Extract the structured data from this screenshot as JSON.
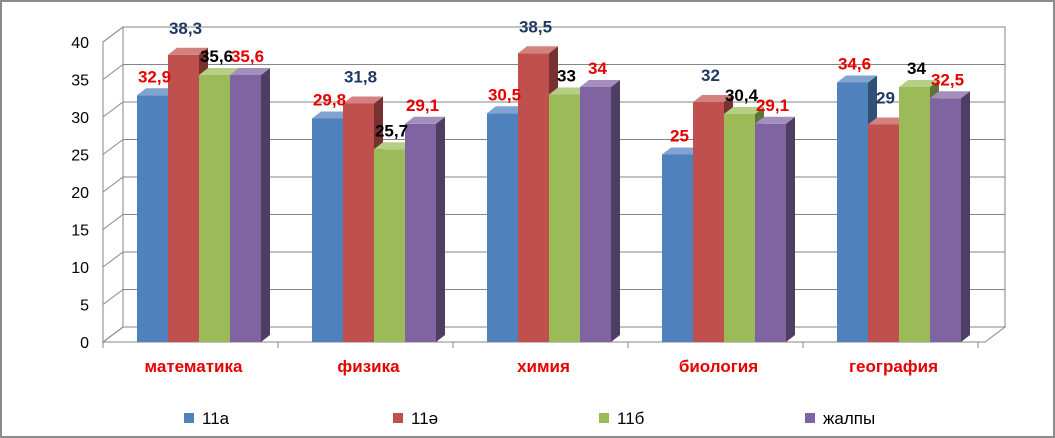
{
  "chart_data": {
    "type": "bar",
    "style": "3d-clustered-column",
    "categories": [
      "математика",
      "физика",
      "химия",
      "биология",
      "география"
    ],
    "category_label_color": "#e60000",
    "series": [
      {
        "name": "11а",
        "color": "#4f81bd",
        "values": [
          32.9,
          29.8,
          30.5,
          25,
          34.6
        ],
        "labels": [
          "32,9",
          "29,8",
          "30,5",
          "25",
          "34,6"
        ],
        "label_color": "#e60000"
      },
      {
        "name": "11ә",
        "color": "#c0504d",
        "values": [
          38.3,
          31.8,
          38.5,
          32,
          29
        ],
        "labels": [
          "38,3",
          "31,8",
          "38,5",
          "32",
          "29"
        ],
        "label_color": "#1f3864"
      },
      {
        "name": "11б",
        "color": "#9bbb59",
        "values": [
          35.6,
          25.7,
          33,
          30.4,
          34
        ],
        "labels": [
          "35,6",
          "25,7",
          "33",
          "30,4",
          "34"
        ],
        "label_color": "#000000"
      },
      {
        "name": "жалпы",
        "color": "#8064a2",
        "values": [
          35.6,
          29.1,
          34,
          29.1,
          32.5
        ],
        "labels": [
          "35,6",
          "29,1",
          "34",
          "29,1",
          "32,5"
        ],
        "label_color": "#e60000"
      }
    ],
    "y_ticks": [
      "0",
      "5",
      "10",
      "15",
      "20",
      "25",
      "30",
      "35",
      "40"
    ],
    "ylim": [
      0,
      40
    ],
    "grid": true,
    "legend_position": "bottom"
  }
}
